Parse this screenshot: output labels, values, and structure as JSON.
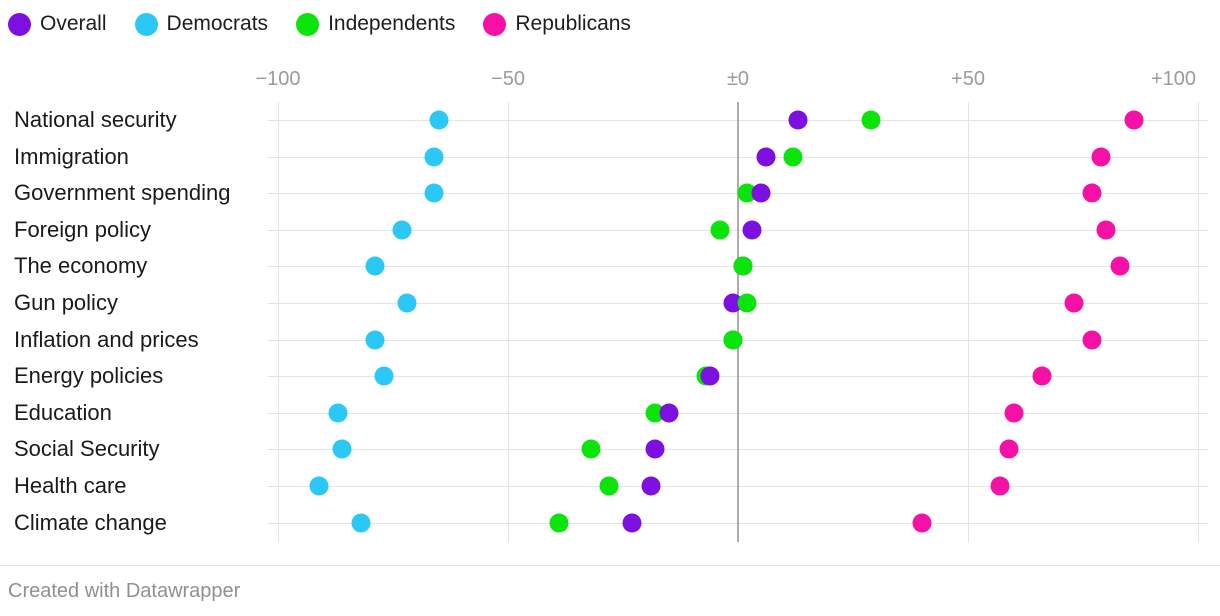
{
  "chart_data": {
    "type": "scatter",
    "subtype": "dot-plot",
    "title": "",
    "xlabel": "",
    "ylabel": "",
    "categories": [
      "National security",
      "Immigration",
      "Government spending",
      "Foreign policy",
      "The economy",
      "Gun policy",
      "Inflation and prices",
      "Energy policies",
      "Education",
      "Social Security",
      "Health care",
      "Climate change"
    ],
    "series": [
      {
        "name": "Overall",
        "color": "#7d10e0",
        "values": [
          13,
          6,
          5,
          3,
          1,
          -1,
          -1,
          -6,
          -15,
          -18,
          -19,
          -23
        ]
      },
      {
        "name": "Democrats",
        "color": "#2bc8f5",
        "values": [
          -65,
          -66,
          -66,
          -73,
          -79,
          -72,
          -79,
          -77,
          -87,
          -86,
          -91,
          -82
        ]
      },
      {
        "name": "Independents",
        "color": "#0be40b",
        "values": [
          29,
          12,
          2,
          -4,
          1,
          2,
          -1,
          -7,
          -18,
          -32,
          -28,
          -39
        ]
      },
      {
        "name": "Republicans",
        "color": "#f511a5",
        "values": [
          86,
          79,
          77,
          80,
          83,
          73,
          77,
          66,
          60,
          59,
          57,
          40
        ]
      }
    ],
    "x_axis": {
      "ticks": [
        -100,
        -50,
        0,
        50,
        100
      ],
      "tick_labels": [
        "−100",
        "−50",
        "±0",
        "+50",
        "+100"
      ],
      "xlim": [
        -102,
        102
      ],
      "grid": true,
      "zero_line": true
    },
    "legend_position": "top-left",
    "style": {
      "grid_color": "#e3e3e3",
      "zero_line_color": "#acacac",
      "axis_label_color": "#9b9b9b",
      "category_label_color": "#1a1a1a"
    }
  },
  "footer": {
    "credit": "Created with Datawrapper"
  }
}
